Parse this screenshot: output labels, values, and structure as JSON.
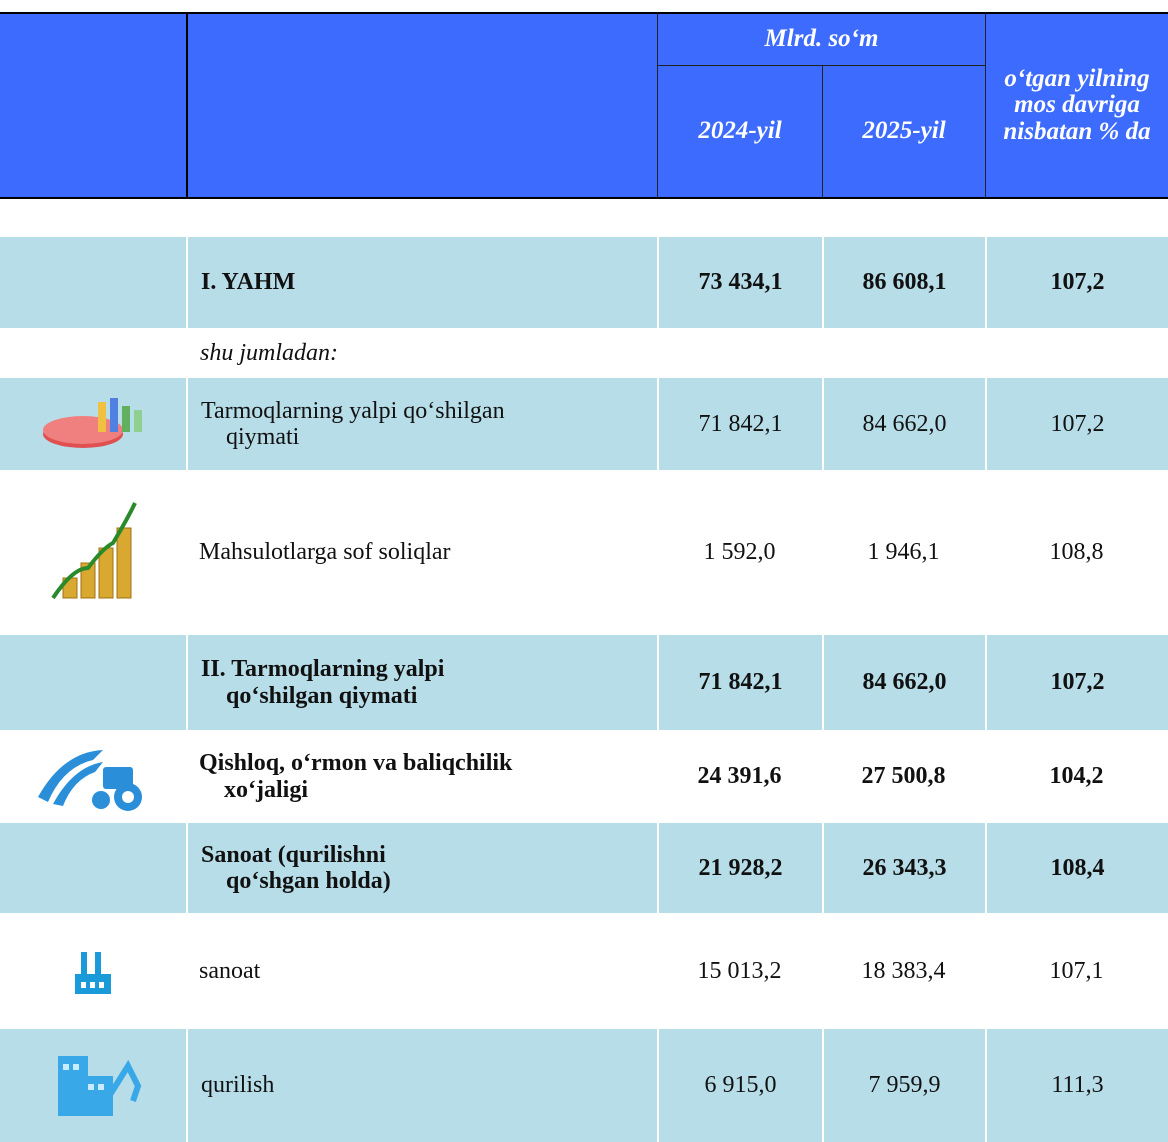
{
  "header": {
    "unit": "Mlrd. so‘m",
    "year_1": "2024-yil",
    "year_2": "2025-yil",
    "percent": "o‘tgan yilning mos davriga nisbatan % da"
  },
  "table": {
    "note": "shu jumladan:",
    "rows": [
      {
        "label": [
          "I. YAHM"
        ],
        "v1": "73 434,1",
        "v2": "86 608,1",
        "pct": "107,2"
      },
      {
        "label": [
          "Tarmoqlarning yalpi qo‘shilgan",
          "qiymati"
        ],
        "v1": "71 842,1",
        "v2": "84 662,0",
        "pct": "107,2"
      },
      {
        "label": [
          "Mahsulotlarga sof soliqlar"
        ],
        "v1": "1 592,0",
        "v2": "1 946,1",
        "pct": "108,8"
      },
      {
        "label": [
          "II. Tarmoqlarning yalpi",
          "qo‘shilgan qiymati"
        ],
        "v1": "71 842,1",
        "v2": "84 662,0",
        "pct": "107,2"
      },
      {
        "label": [
          "Qishloq, o‘rmon va baliqchilik",
          "xo‘jaligi"
        ],
        "v1": "24 391,6",
        "v2": "27 500,8",
        "pct": "104,2"
      },
      {
        "label": [
          "Sanoat (qurilishni",
          "qo‘shgan holda)"
        ],
        "v1": "21 928,2",
        "v2": "26 343,3",
        "pct": "108,4"
      },
      {
        "label": [
          "sanoat"
        ],
        "v1": "15 013,2",
        "v2": "18 383,4",
        "pct": "107,1"
      },
      {
        "label": [
          "qurilish"
        ],
        "v1": "6 915,0",
        "v2": "7 959,9",
        "pct": "111,3"
      }
    ]
  }
}
